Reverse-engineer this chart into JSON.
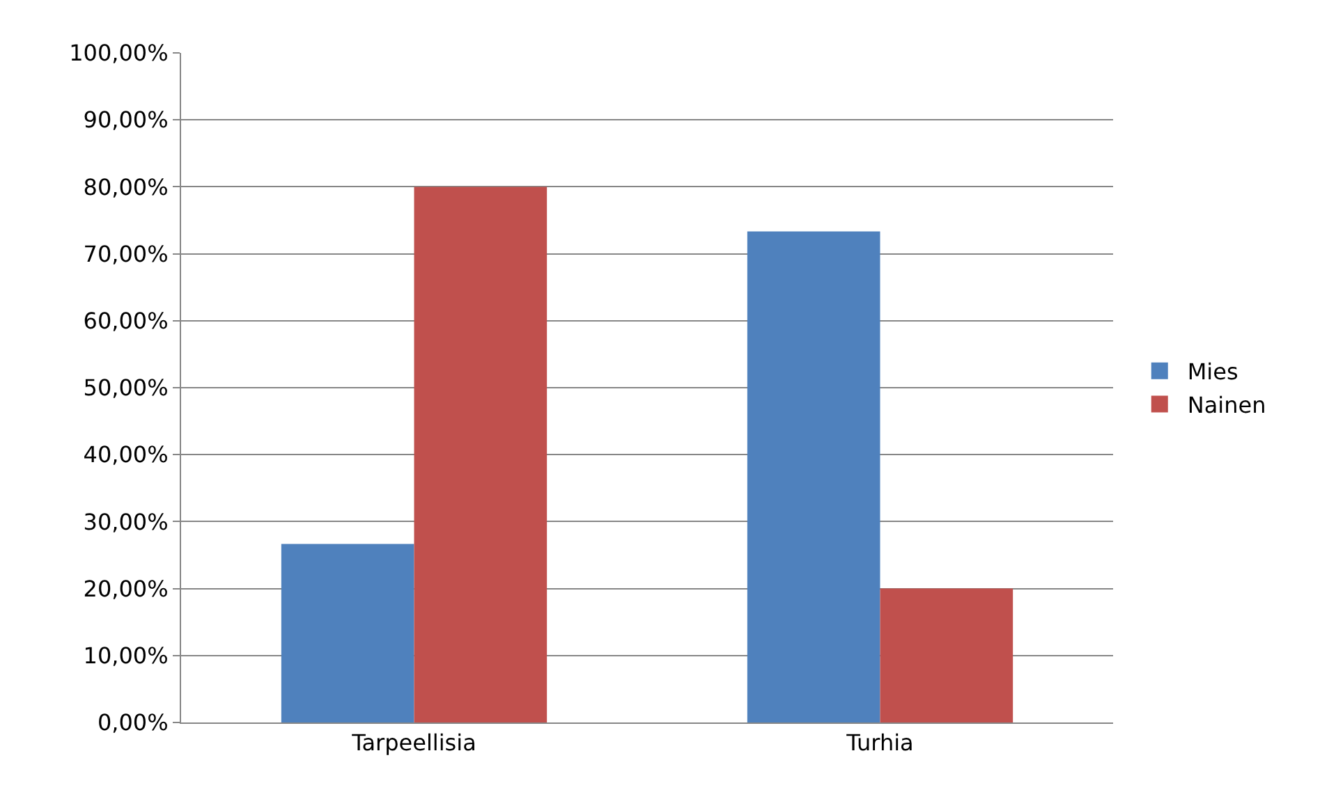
{
  "chart_data": {
    "type": "bar",
    "categories": [
      "Tarpeellisia",
      "Turhia"
    ],
    "series": [
      {
        "name": "Mies",
        "color": "#4f81bd",
        "values": [
          26.67,
          73.33
        ]
      },
      {
        "name": "Nainen",
        "color": "#c0504d",
        "values": [
          80,
          20
        ]
      }
    ],
    "ylim": [
      0,
      100
    ],
    "yticks": [
      {
        "value": 0,
        "label": "0,00%"
      },
      {
        "value": 10,
        "label": "10,00%"
      },
      {
        "value": 20,
        "label": "20,00%"
      },
      {
        "value": 30,
        "label": "30,00%"
      },
      {
        "value": 40,
        "label": "40,00%"
      },
      {
        "value": 50,
        "label": "50,00%"
      },
      {
        "value": 60,
        "label": "60,00%"
      },
      {
        "value": 70,
        "label": "70,00%"
      },
      {
        "value": 80,
        "label": "80,00%"
      },
      {
        "value": 90,
        "label": "90,00%"
      },
      {
        "value": 100,
        "label": "100,00%"
      }
    ],
    "grid": "y",
    "legend": "right"
  }
}
